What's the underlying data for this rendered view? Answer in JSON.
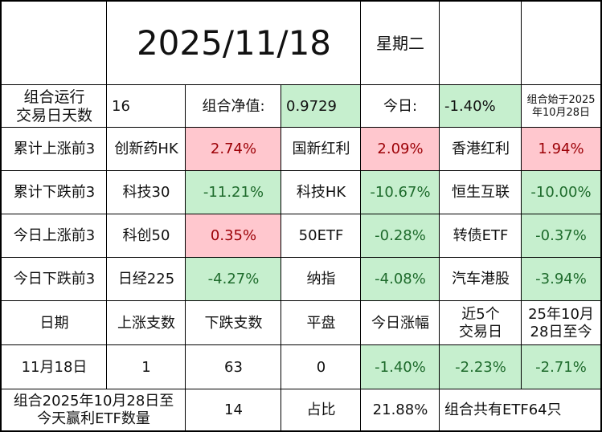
{
  "header": {
    "date": "2025/11/18",
    "weekday": "星期二"
  },
  "summary": {
    "run_days_label": "组合运行\n交易日天数",
    "run_days_value": "16",
    "nav_label": "组合净值:",
    "nav_value": "0.9729",
    "today_label": "今日:",
    "today_value": "-1.40%",
    "start_note": "组合始于2025\n年10月28日"
  },
  "rankings": [
    {
      "label": "累计上涨前3",
      "items": [
        {
          "name": "创新药HK",
          "value": "2.74%",
          "tone": "red"
        },
        {
          "name": "国新红利",
          "value": "2.09%",
          "tone": "red"
        },
        {
          "name": "香港红利",
          "value": "1.94%",
          "tone": "red"
        }
      ]
    },
    {
      "label": "累计下跌前3",
      "items": [
        {
          "name": "科技30",
          "value": "-11.21%",
          "tone": "green"
        },
        {
          "name": "科技HK",
          "value": "-10.67%",
          "tone": "green"
        },
        {
          "name": "恒生互联",
          "value": "-10.00%",
          "tone": "green"
        }
      ]
    },
    {
      "label": "今日上涨前3",
      "items": [
        {
          "name": "科创50",
          "value": "0.35%",
          "tone": "red"
        },
        {
          "name": "50ETF",
          "value": "-0.28%",
          "tone": "green"
        },
        {
          "name": "转债ETF",
          "value": "-0.37%",
          "tone": "green"
        }
      ]
    },
    {
      "label": "今日下跌前3",
      "items": [
        {
          "name": "日经225",
          "value": "-4.27%",
          "tone": "green"
        },
        {
          "name": "纳指",
          "value": "-4.08%",
          "tone": "green"
        },
        {
          "name": "汽车港股",
          "value": "-3.94%",
          "tone": "green"
        }
      ]
    }
  ],
  "stats_header": [
    "日期",
    "上涨支数",
    "下跌支数",
    "平盘",
    "今日涨幅",
    "近5个\n交易日",
    "25年10月\n28日至今"
  ],
  "stats_row": [
    "11月18日",
    "1",
    "63",
    "0",
    "-1.40%",
    "-2.23%",
    "-2.71%"
  ],
  "footer": {
    "profit_label": "组合2025年10月28日至\n今天赢利ETF数量",
    "profit_count": "14",
    "ratio_label": "占比",
    "ratio_value": "21.88%",
    "total_note": "组合共有ETF64只"
  },
  "colors": {
    "up": "#ffc7ce",
    "up_text": "#9c0006",
    "down": "#c6efce",
    "down_text": "#1e6b2c",
    "grid": "#000000"
  }
}
